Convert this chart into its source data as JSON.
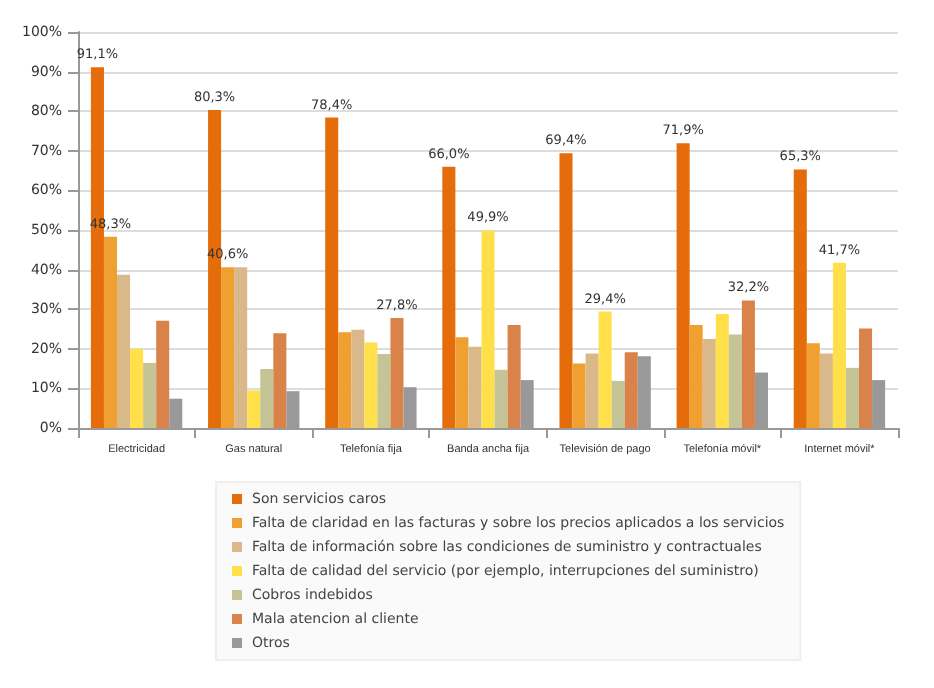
{
  "chart_data": {
    "type": "bar",
    "categories": [
      "Electricidad",
      "Gas natural",
      "Telefonía fija",
      "Banda ancha fija",
      "Televisión de pago",
      "Telefonía móvil*",
      "Internet móvil*"
    ],
    "series": [
      {
        "name": "Son servicios caros",
        "color": "#e46c0a",
        "values": [
          91.1,
          80.3,
          78.4,
          66.0,
          69.4,
          71.9,
          65.3
        ],
        "value_labels": [
          "91,1%",
          "80,3%",
          "78,4%",
          "66,0%",
          "69,4%",
          "71,9%",
          "65,3%"
        ]
      },
      {
        "name": "Falta de claridad en las facturas y sobre los precios aplicados a los servicios",
        "color": "#f0a030",
        "values": [
          48.3,
          40.6,
          24.2,
          22.9,
          16.3,
          26.0,
          21.4
        ],
        "value_labels": [
          "48,3%",
          "40,6%",
          null,
          null,
          null,
          null,
          null
        ]
      },
      {
        "name": "Falta de información sobre las condiciones de suministro y contractuales",
        "color": "#d9b98a",
        "values": [
          38.7,
          40.6,
          24.8,
          20.5,
          18.8,
          22.5,
          18.8
        ]
      },
      {
        "name": "Falta de calidad del servicio (por ejemplo, interrupciones del suministro)",
        "color": "#ffe04a",
        "values": [
          20.0,
          9.5,
          21.6,
          49.9,
          29.4,
          28.8,
          41.7
        ],
        "value_labels": [
          null,
          null,
          null,
          "49,9%",
          "29,4%",
          null,
          "41,7%"
        ]
      },
      {
        "name": "Cobros indebidos",
        "color": "#c4c496",
        "values": [
          16.4,
          14.9,
          18.7,
          14.7,
          11.9,
          23.6,
          15.2
        ]
      },
      {
        "name": "Mala atencion al cliente",
        "color": "#d9834a",
        "values": [
          27.1,
          23.9,
          27.8,
          26.0,
          19.1,
          32.2,
          25.1
        ],
        "value_labels": [
          null,
          null,
          "27,8%",
          null,
          null,
          "32,2%",
          null
        ]
      },
      {
        "name": "Otros",
        "color": "#999999",
        "values": [
          7.4,
          9.3,
          10.3,
          12.1,
          18.1,
          14.0,
          12.1
        ]
      }
    ],
    "ylim": [
      0,
      100
    ],
    "yticks": [
      {
        "value": 0,
        "label": "0%"
      },
      {
        "value": 10,
        "label": "10%"
      },
      {
        "value": 20,
        "label": "20%"
      },
      {
        "value": 30,
        "label": "30%"
      },
      {
        "value": 40,
        "label": "40%"
      },
      {
        "value": 50,
        "label": "50%"
      },
      {
        "value": 60,
        "label": "60%"
      },
      {
        "value": 70,
        "label": "70%"
      },
      {
        "value": 80,
        "label": "80%"
      },
      {
        "value": 90,
        "label": "90%"
      },
      {
        "value": 100,
        "label": "100%"
      }
    ],
    "grid": "y",
    "legend": "bottom"
  }
}
